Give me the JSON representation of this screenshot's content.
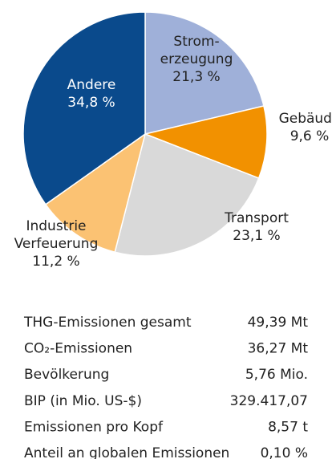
{
  "chart_data": {
    "type": "pie",
    "categories": [
      [
        "Strom-",
        "erzeugung"
      ],
      [
        "Gebäude"
      ],
      [
        "Transport"
      ],
      [
        "Industrie",
        "Verfeuerung"
      ],
      [
        "Andere"
      ]
    ],
    "values": [
      21.3,
      9.6,
      23.1,
      11.2,
      34.8
    ],
    "value_labels": [
      "21,3 %",
      "9,6 %",
      "23,1 %",
      "11,2 %",
      "34,8 %"
    ],
    "colors": [
      "#9fb0d9",
      "#f29100",
      "#d9d9d9",
      "#fbc273",
      "#0a4a8c"
    ]
  },
  "table": {
    "rows": [
      [
        "THG-Emissionen gesamt",
        "49,39 Mt"
      ],
      [
        "CO₂-Emissionen",
        "36,27 Mt"
      ],
      [
        "Bevölkerung",
        "5,76 Mio."
      ],
      [
        "BIP (in Mio. US-$)",
        "329.417,07"
      ],
      [
        "Emissionen pro Kopf",
        "8,57 t"
      ],
      [
        "Anteil an globalen Emissionen",
        "0,10 %"
      ]
    ]
  }
}
